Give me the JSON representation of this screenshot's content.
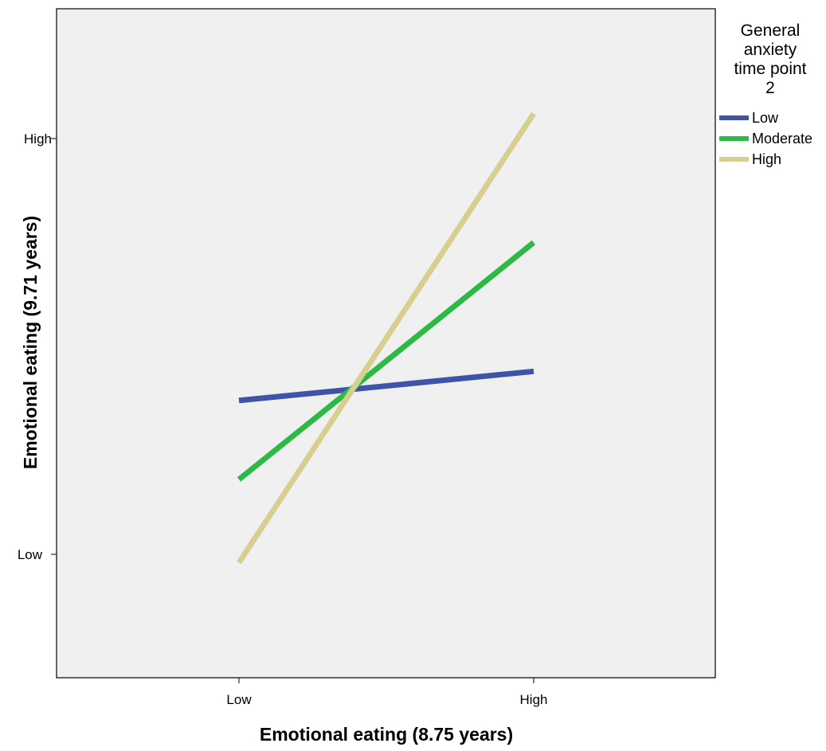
{
  "chart_data": {
    "type": "line",
    "title": "",
    "xlabel": "Emotional eating (8.75 years)",
    "ylabel": "Emotional eating (9.71 years)",
    "x_categories": [
      "Low",
      "High"
    ],
    "y_ticks": [
      "Low",
      "High"
    ],
    "ylim": [
      -0.4,
      1.3
    ],
    "grid": false,
    "legend": {
      "title_lines": [
        "General",
        "anxiety",
        "time point",
        "2"
      ],
      "placement": "right"
    },
    "series": [
      {
        "name": "Low",
        "color": "#3f54a8",
        "values": [
          0.37,
          0.44
        ]
      },
      {
        "name": "Moderate",
        "color": "#2eb846",
        "values": [
          0.18,
          0.75
        ]
      },
      {
        "name": "High",
        "color": "#d6cf8f",
        "values": [
          -0.02,
          1.06
        ]
      }
    ],
    "colors": {
      "plot_background": "#f0f0f0",
      "axis": "#000000"
    }
  }
}
